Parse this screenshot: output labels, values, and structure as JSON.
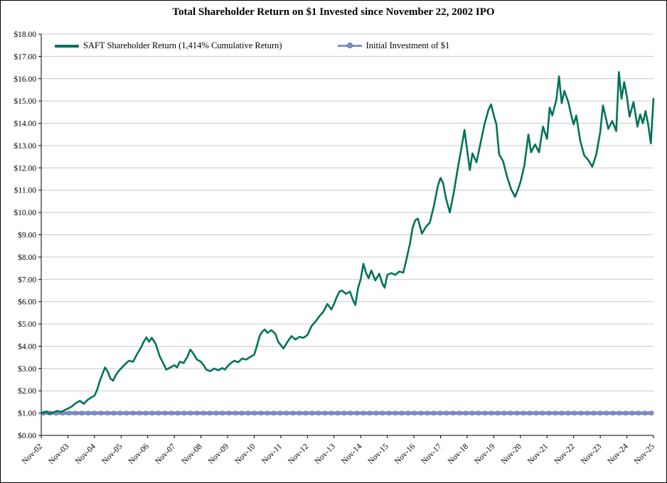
{
  "title": "Total Shareholder Return on $1 Invested since November 22, 2002 IPO",
  "legend": [
    {
      "label": "SAFT Shareholder Return (1,414% Cumulative Return)",
      "color": "#00715C",
      "marker": "line"
    },
    {
      "label": "Initial Investment of $1",
      "color": "#8191C6",
      "marker": "line-circle"
    }
  ],
  "chart_data": {
    "type": "line",
    "title": "Total Shareholder Return on $1 Invested since November 22, 2002 IPO",
    "xlabel": "",
    "ylabel": "",
    "xlim": [
      0,
      23
    ],
    "ylim": [
      0,
      18
    ],
    "grid": "horizontal",
    "legend_position": "top-left-inside",
    "x_unit": "years since Nov-2002 (ticks at each November)",
    "x_tick_labels": [
      "Nov-02",
      "Nov-03",
      "Nov-04",
      "Nov-05",
      "Nov-06",
      "Nov-07",
      "Nov-08",
      "Nov-09",
      "Nov-10",
      "Nov-11",
      "Nov-12",
      "Nov-13",
      "Nov-14",
      "Nov-15",
      "Nov-16",
      "Nov-17",
      "Nov-18",
      "Nov-19",
      "Nov-20",
      "Nov-21",
      "Nov-22",
      "Nov-23",
      "Nov-24",
      "Nov-25"
    ],
    "y_tick_labels": [
      "$0.00",
      "$1.00",
      "$2.00",
      "$3.00",
      "$4.00",
      "$5.00",
      "$6.00",
      "$7.00",
      "$8.00",
      "$9.00",
      "$10.00",
      "$11.00",
      "$12.00",
      "$13.00",
      "$14.00",
      "$15.00",
      "$16.00",
      "$17.00",
      "$18.00"
    ],
    "series": [
      {
        "name": "SAFT Shareholder Return (1,414% Cumulative Return)",
        "color": "#00715C",
        "points": [
          [
            0,
            1.0
          ],
          [
            0.1,
            1.02
          ],
          [
            0.2,
            1.08
          ],
          [
            0.3,
            0.98
          ],
          [
            0.45,
            1.03
          ],
          [
            0.6,
            1.1
          ],
          [
            0.75,
            1.05
          ],
          [
            0.9,
            1.15
          ],
          [
            1.0,
            1.2
          ],
          [
            1.15,
            1.3
          ],
          [
            1.3,
            1.45
          ],
          [
            1.45,
            1.55
          ],
          [
            1.6,
            1.42
          ],
          [
            1.75,
            1.6
          ],
          [
            1.9,
            1.72
          ],
          [
            2.0,
            1.78
          ],
          [
            2.1,
            2.05
          ],
          [
            2.2,
            2.45
          ],
          [
            2.3,
            2.75
          ],
          [
            2.4,
            3.05
          ],
          [
            2.5,
            2.85
          ],
          [
            2.6,
            2.55
          ],
          [
            2.7,
            2.45
          ],
          [
            2.8,
            2.7
          ],
          [
            2.9,
            2.88
          ],
          [
            3.0,
            3.0
          ],
          [
            3.15,
            3.2
          ],
          [
            3.3,
            3.35
          ],
          [
            3.45,
            3.3
          ],
          [
            3.6,
            3.65
          ],
          [
            3.75,
            3.95
          ],
          [
            3.85,
            4.2
          ],
          [
            3.95,
            4.4
          ],
          [
            4.05,
            4.2
          ],
          [
            4.15,
            4.38
          ],
          [
            4.3,
            4.1
          ],
          [
            4.45,
            3.55
          ],
          [
            4.6,
            3.2
          ],
          [
            4.7,
            2.95
          ],
          [
            4.85,
            3.05
          ],
          [
            5.0,
            3.15
          ],
          [
            5.1,
            3.05
          ],
          [
            5.2,
            3.3
          ],
          [
            5.35,
            3.25
          ],
          [
            5.5,
            3.55
          ],
          [
            5.6,
            3.85
          ],
          [
            5.7,
            3.7
          ],
          [
            5.85,
            3.4
          ],
          [
            6.0,
            3.3
          ],
          [
            6.1,
            3.15
          ],
          [
            6.2,
            2.95
          ],
          [
            6.35,
            2.88
          ],
          [
            6.5,
            3.0
          ],
          [
            6.65,
            2.92
          ],
          [
            6.8,
            3.02
          ],
          [
            6.9,
            2.95
          ],
          [
            7.0,
            3.1
          ],
          [
            7.1,
            3.22
          ],
          [
            7.25,
            3.35
          ],
          [
            7.4,
            3.28
          ],
          [
            7.55,
            3.45
          ],
          [
            7.7,
            3.4
          ],
          [
            7.85,
            3.52
          ],
          [
            8.0,
            3.62
          ],
          [
            8.1,
            4.0
          ],
          [
            8.2,
            4.45
          ],
          [
            8.3,
            4.65
          ],
          [
            8.4,
            4.75
          ],
          [
            8.5,
            4.6
          ],
          [
            8.65,
            4.72
          ],
          [
            8.8,
            4.55
          ],
          [
            8.9,
            4.2
          ],
          [
            9.0,
            4.05
          ],
          [
            9.1,
            3.9
          ],
          [
            9.25,
            4.2
          ],
          [
            9.4,
            4.45
          ],
          [
            9.55,
            4.3
          ],
          [
            9.7,
            4.42
          ],
          [
            9.85,
            4.38
          ],
          [
            10.0,
            4.5
          ],
          [
            10.15,
            4.9
          ],
          [
            10.3,
            5.1
          ],
          [
            10.45,
            5.35
          ],
          [
            10.6,
            5.55
          ],
          [
            10.75,
            5.9
          ],
          [
            10.9,
            5.65
          ],
          [
            11.0,
            5.9
          ],
          [
            11.1,
            6.2
          ],
          [
            11.2,
            6.45
          ],
          [
            11.3,
            6.5
          ],
          [
            11.45,
            6.35
          ],
          [
            11.6,
            6.45
          ],
          [
            11.7,
            6.1
          ],
          [
            11.8,
            5.85
          ],
          [
            11.9,
            6.6
          ],
          [
            12.0,
            7.0
          ],
          [
            12.1,
            7.7
          ],
          [
            12.2,
            7.3
          ],
          [
            12.3,
            7.05
          ],
          [
            12.4,
            7.4
          ],
          [
            12.55,
            6.95
          ],
          [
            12.7,
            7.25
          ],
          [
            12.8,
            6.85
          ],
          [
            12.9,
            6.62
          ],
          [
            13.0,
            7.2
          ],
          [
            13.15,
            7.28
          ],
          [
            13.3,
            7.2
          ],
          [
            13.45,
            7.35
          ],
          [
            13.6,
            7.3
          ],
          [
            13.7,
            7.8
          ],
          [
            13.85,
            8.6
          ],
          [
            13.95,
            9.3
          ],
          [
            14.05,
            9.65
          ],
          [
            14.15,
            9.72
          ],
          [
            14.3,
            9.05
          ],
          [
            14.45,
            9.35
          ],
          [
            14.6,
            9.55
          ],
          [
            14.75,
            10.3
          ],
          [
            14.9,
            11.2
          ],
          [
            15.0,
            11.55
          ],
          [
            15.1,
            11.3
          ],
          [
            15.2,
            10.65
          ],
          [
            15.35,
            10.0
          ],
          [
            15.5,
            10.9
          ],
          [
            15.65,
            12.0
          ],
          [
            15.8,
            13.0
          ],
          [
            15.9,
            13.7
          ],
          [
            16.0,
            12.8
          ],
          [
            16.1,
            11.9
          ],
          [
            16.2,
            12.65
          ],
          [
            16.35,
            12.25
          ],
          [
            16.5,
            13.1
          ],
          [
            16.65,
            13.95
          ],
          [
            16.8,
            14.6
          ],
          [
            16.9,
            14.85
          ],
          [
            17.0,
            14.35
          ],
          [
            17.1,
            13.95
          ],
          [
            17.2,
            12.6
          ],
          [
            17.35,
            12.3
          ],
          [
            17.5,
            11.6
          ],
          [
            17.65,
            11.05
          ],
          [
            17.8,
            10.7
          ],
          [
            17.9,
            11.0
          ],
          [
            18.0,
            11.35
          ],
          [
            18.15,
            12.1
          ],
          [
            18.3,
            13.5
          ],
          [
            18.4,
            12.7
          ],
          [
            18.55,
            13.05
          ],
          [
            18.7,
            12.7
          ],
          [
            18.85,
            13.85
          ],
          [
            19.0,
            13.3
          ],
          [
            19.1,
            14.7
          ],
          [
            19.2,
            14.35
          ],
          [
            19.35,
            15.05
          ],
          [
            19.45,
            16.1
          ],
          [
            19.55,
            14.9
          ],
          [
            19.65,
            15.45
          ],
          [
            19.8,
            14.95
          ],
          [
            19.9,
            14.4
          ],
          [
            20.0,
            13.95
          ],
          [
            20.1,
            14.35
          ],
          [
            20.25,
            13.2
          ],
          [
            20.4,
            12.55
          ],
          [
            20.55,
            12.35
          ],
          [
            20.7,
            12.05
          ],
          [
            20.85,
            12.6
          ],
          [
            21.0,
            13.6
          ],
          [
            21.1,
            14.8
          ],
          [
            21.2,
            14.3
          ],
          [
            21.3,
            13.75
          ],
          [
            21.45,
            14.1
          ],
          [
            21.6,
            13.65
          ],
          [
            21.7,
            16.3
          ],
          [
            21.8,
            15.1
          ],
          [
            21.9,
            15.85
          ],
          [
            22.0,
            15.2
          ],
          [
            22.1,
            14.3
          ],
          [
            22.25,
            14.95
          ],
          [
            22.4,
            13.85
          ],
          [
            22.5,
            14.4
          ],
          [
            22.6,
            14.0
          ],
          [
            22.7,
            14.55
          ],
          [
            22.8,
            13.95
          ],
          [
            22.9,
            13.1
          ],
          [
            23.0,
            15.1
          ]
        ]
      },
      {
        "name": "Initial Investment of $1",
        "color": "#8191C6",
        "marker_edge": "#5E6EA8",
        "constant": 1.0
      }
    ]
  }
}
